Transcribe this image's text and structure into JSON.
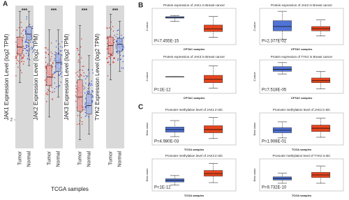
{
  "figure": {
    "panel_labels": [
      "A",
      "B",
      "C"
    ],
    "a_xlabel": "TCGA samples"
  },
  "chart_data": [
    {
      "type": "box",
      "panel": "A",
      "ylabel": "JAK1 Expression Level (log2 TPM)",
      "annotation": "***",
      "categories": [
        "Tumor",
        "Normal"
      ],
      "colors": [
        "#f4a3a3",
        "#a9b9f2"
      ],
      "point_colors": [
        "#e3201b",
        "#2a46e0"
      ],
      "ylim": [
        0,
        10
      ],
      "yticks": [
        2
      ],
      "boxes": [
        [
          4.6,
          6.6,
          7.1,
          7.8,
          9.6
        ],
        [
          5.8,
          7.6,
          8.0,
          8.5,
          9.6
        ]
      ]
    },
    {
      "type": "box",
      "panel": "A",
      "ylabel": "JAK2 Expression Level (log2 TPM)",
      "annotation": "***",
      "categories": [
        "Tumor",
        "Normal"
      ],
      "colors": [
        "#f4a3a3",
        "#a9b9f2"
      ],
      "point_colors": [
        "#e3201b",
        "#2a46e0"
      ],
      "ylim": [
        0,
        10
      ],
      "boxes": [
        [
          2.2,
          4.4,
          5.0,
          5.8,
          8.3
        ],
        [
          3.6,
          5.4,
          6.0,
          6.6,
          8.3
        ]
      ]
    },
    {
      "type": "box",
      "panel": "A",
      "ylabel": "JAK3 Expression Level (log2 TPM)",
      "annotation": "***",
      "categories": [
        "Tumor",
        "Normal"
      ],
      "colors": [
        "#f4a3a3",
        "#a9b9f2"
      ],
      "point_colors": [
        "#e3201b",
        "#2a46e0"
      ],
      "ylim": [
        0,
        10
      ],
      "boxes": [
        [
          0.6,
          2.6,
          3.6,
          4.8,
          8.6
        ],
        [
          1.0,
          2.4,
          3.0,
          3.8,
          6.5
        ]
      ]
    },
    {
      "type": "box",
      "panel": "A",
      "ylabel": "TYK2 Expression Level (log2 TPM)",
      "annotation": "***",
      "categories": [
        "Tumor",
        "Normal"
      ],
      "colors": [
        "#f4a3a3",
        "#a9b9f2"
      ],
      "point_colors": [
        "#e3201b",
        "#2a46e0"
      ],
      "ylim": [
        0,
        10
      ],
      "boxes": [
        [
          4.8,
          6.6,
          7.2,
          7.8,
          9.4
        ],
        [
          5.4,
          6.8,
          7.3,
          7.7,
          8.9
        ]
      ]
    },
    {
      "type": "box",
      "panel": "B",
      "title": "Protein expression of JAK1 in Breast cancer",
      "xlabel": "CPTAC samples",
      "ylabel": "Z-value",
      "annotation": "P=7.455E-15",
      "colors": [
        "#4f73d6",
        "#e8461e"
      ],
      "ylim": [
        0,
        10
      ],
      "boxes": [
        [
          6.4,
          7.3,
          7.5,
          7.7,
          8.0
        ],
        [
          2.0,
          3.6,
          4.3,
          5.4,
          7.8
        ]
      ]
    },
    {
      "type": "box",
      "panel": "B",
      "title": "Protein expression of JAK2 in Breast cancer",
      "xlabel": "CPTAC samples",
      "ylabel": "Z-value",
      "annotation": "P=2.377E-02",
      "colors": [
        "#4f73d6",
        "#e8461e"
      ],
      "ylim": [
        0,
        10
      ],
      "boxes": [
        [
          1.5,
          3.8,
          5.0,
          6.6,
          9.2
        ],
        [
          2.4,
          3.8,
          4.4,
          5.0,
          6.8
        ]
      ]
    },
    {
      "type": "box",
      "panel": "B",
      "title": "Protein expression of JAK3 in Breast cancer",
      "xlabel": "CPTAC samples",
      "ylabel": "Z-value",
      "annotation": "P=1E-12",
      "colors": [
        "#4f73d6",
        "#e8461e"
      ],
      "ylim": [
        0,
        10
      ],
      "boxes": [
        [
          5.0,
          5.0,
          5.0,
          5.0,
          5.0
        ],
        [
          1.6,
          3.2,
          4.2,
          5.4,
          8.2
        ]
      ]
    },
    {
      "type": "box",
      "panel": "B",
      "title": "Protein expression of TYK2 in Breast cancer",
      "xlabel": "CPTAC samples",
      "ylabel": "Z-value",
      "annotation": "P=7.518E-05",
      "colors": [
        "#4f73d6",
        "#e8461e"
      ],
      "ylim": [
        0,
        10
      ],
      "boxes": [
        [
          5.8,
          6.6,
          7.2,
          8.0,
          9.2
        ],
        [
          1.4,
          3.2,
          3.8,
          4.6,
          6.6
        ]
      ]
    },
    {
      "type": "box",
      "panel": "C",
      "title": "Promoter methylation level of JAK1 in BC",
      "xlabel": "TCGA samples",
      "ylabel": "Beta value",
      "annotation": "P=4.980E-03",
      "colors": [
        "#4f73d6",
        "#e8461e"
      ],
      "ylim": [
        0,
        10
      ],
      "boxes": [
        [
          2.6,
          4.0,
          4.8,
          5.6,
          7.6
        ],
        [
          2.0,
          3.8,
          4.8,
          6.0,
          8.6
        ]
      ]
    },
    {
      "type": "box",
      "panel": "C",
      "title": "Promoter methylation level of JAK2 in BC",
      "xlabel": "TCGA samples",
      "ylabel": "Beta value",
      "annotation": "P=1.908E-01",
      "colors": [
        "#4f73d6",
        "#e8461e"
      ],
      "ylim": [
        0,
        10
      ],
      "boxes": [
        [
          2.2,
          3.8,
          4.6,
          5.4,
          7.2
        ],
        [
          2.4,
          4.2,
          5.2,
          6.2,
          8.4
        ]
      ]
    },
    {
      "type": "box",
      "panel": "C",
      "title": "Promoter methylation level of JAK3 in BC",
      "xlabel": "TCGA samples",
      "ylabel": "Beta value",
      "annotation": "P=1E-12",
      "colors": [
        "#4f73d6",
        "#e8461e"
      ],
      "ylim": [
        0,
        10
      ],
      "boxes": [
        [
          1.8,
          2.8,
          3.3,
          3.8,
          4.8
        ],
        [
          2.6,
          4.6,
          5.4,
          6.4,
          8.6
        ]
      ]
    },
    {
      "type": "box",
      "panel": "C",
      "title": "Promoter methylation level of TYK2 in BC",
      "xlabel": "TCGA samples",
      "ylabel": "Beta value",
      "annotation": "P=9.732E-10",
      "colors": [
        "#4f73d6",
        "#e8461e"
      ],
      "ylim": [
        0,
        10
      ],
      "boxes": [
        [
          2.4,
          3.4,
          3.9,
          4.4,
          5.6
        ],
        [
          2.4,
          4.2,
          5.0,
          5.8,
          7.8
        ]
      ]
    }
  ]
}
